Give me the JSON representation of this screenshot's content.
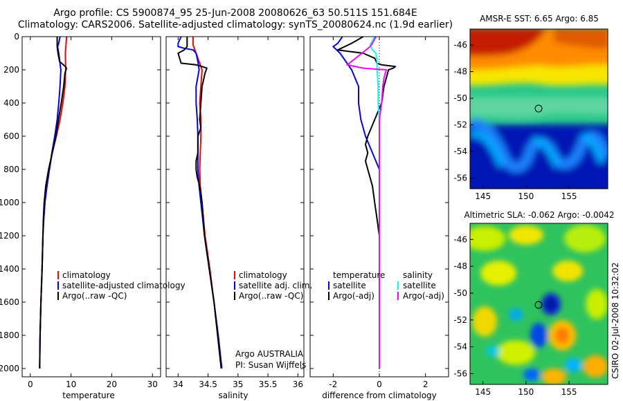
{
  "titles": {
    "line1": "Argo profile: CS 5900874_95 25-Jun-2008 20080626_63 50.511S 151.684E",
    "line2": "Climatology: CARS2006. Satellite-adjusted climatology: synTS_20080624.nc (1.9d earlier)"
  },
  "credit": "CSIRO 02-Jul-2008 10:32:02",
  "colors": {
    "red": "#ff0000",
    "blue": "#0000ff",
    "black": "#000000",
    "cyan": "#00ffff",
    "magenta": "#ff00ff"
  },
  "chart_data": [
    {
      "type": "line",
      "name": "temperature-panel",
      "xlabel": "temperature",
      "xlim": [
        -2,
        32
      ],
      "ylim": [
        0,
        2050
      ],
      "yreverse": true,
      "xticks": [
        "0",
        "10",
        "20",
        "30"
      ],
      "xtickvals": [
        0,
        10,
        20,
        30
      ],
      "yticks": [
        "0",
        "200",
        "400",
        "600",
        "800",
        "1000",
        "1200",
        "1400",
        "1600",
        "1800",
        "2000"
      ],
      "legend": [
        "climatology",
        "satellite-adjusted climatology",
        "Argo(..raw -QC)"
      ],
      "series": [
        {
          "name": "climatology",
          "color": "red",
          "points": [
            [
              8.9,
              0
            ],
            [
              8.8,
              40
            ],
            [
              8.6,
              100
            ],
            [
              8.7,
              200
            ],
            [
              8.5,
              300
            ],
            [
              8.0,
              400
            ],
            [
              7.3,
              500
            ],
            [
              6.4,
              600
            ],
            [
              5.4,
              700
            ],
            [
              4.7,
              800
            ],
            [
              4.0,
              900
            ],
            [
              3.6,
              1000
            ],
            [
              3.3,
              1100
            ],
            [
              3.1,
              1200
            ],
            [
              2.9,
              1400
            ],
            [
              2.6,
              1600
            ],
            [
              2.4,
              1800
            ],
            [
              2.3,
              2000
            ]
          ]
        },
        {
          "name": "satellite-adjusted climatology",
          "color": "blue",
          "points": [
            [
              7.3,
              0
            ],
            [
              7.0,
              40
            ],
            [
              6.7,
              60
            ],
            [
              7.0,
              100
            ],
            [
              7.5,
              200
            ],
            [
              7.3,
              300
            ],
            [
              7.0,
              400
            ],
            [
              6.6,
              500
            ],
            [
              6.0,
              600
            ],
            [
              5.3,
              700
            ],
            [
              4.7,
              800
            ],
            [
              4.1,
              900
            ],
            [
              3.6,
              1000
            ],
            [
              3.3,
              1100
            ],
            [
              3.1,
              1200
            ],
            [
              2.9,
              1400
            ],
            [
              2.6,
              1600
            ],
            [
              2.4,
              1800
            ],
            [
              2.3,
              2000
            ]
          ]
        },
        {
          "name": "Argo(..raw -QC)",
          "color": "black",
          "points": [
            [
              6.6,
              0
            ],
            [
              6.6,
              60
            ],
            [
              6.8,
              100
            ],
            [
              7.2,
              150
            ],
            [
              8.6,
              180
            ],
            [
              8.9,
              190
            ],
            [
              8.5,
              220
            ],
            [
              8.2,
              300
            ],
            [
              7.6,
              400
            ],
            [
              6.9,
              500
            ],
            [
              6.3,
              600
            ],
            [
              5.4,
              700
            ],
            [
              4.5,
              800
            ],
            [
              3.8,
              900
            ],
            [
              3.4,
              1000
            ],
            [
              3.2,
              1100
            ],
            [
              3.1,
              1200
            ],
            [
              2.9,
              1400
            ],
            [
              2.6,
              1600
            ],
            [
              2.4,
              1800
            ],
            [
              2.3,
              2000
            ]
          ]
        }
      ]
    },
    {
      "type": "line",
      "name": "salinity-panel",
      "xlabel": "salinity",
      "xlim": [
        33.8,
        36.1
      ],
      "ylim": [
        0,
        2050
      ],
      "yreverse": true,
      "xticks": [
        "34",
        "34.5",
        "35",
        "35.5",
        "36"
      ],
      "xtickvals": [
        34,
        34.5,
        35,
        35.5,
        36
      ],
      "legend": [
        "climatology",
        "satellite adj. clim.",
        "Argo(..raw -QC)"
      ],
      "annotation": [
        "Argo AUSTRALIA",
        "PI: Susan Wijffels"
      ],
      "series": [
        {
          "name": "climatology",
          "color": "red",
          "points": [
            [
              34.25,
              0
            ],
            [
              34.25,
              50
            ],
            [
              34.3,
              100
            ],
            [
              34.35,
              150
            ],
            [
              34.4,
              200
            ],
            [
              34.38,
              300
            ],
            [
              34.36,
              400
            ],
            [
              34.38,
              500
            ],
            [
              34.38,
              600
            ],
            [
              34.37,
              700
            ],
            [
              34.36,
              800
            ],
            [
              34.37,
              900
            ],
            [
              34.4,
              1000
            ],
            [
              34.45,
              1200
            ],
            [
              34.53,
              1400
            ],
            [
              34.6,
              1600
            ],
            [
              34.66,
              1800
            ],
            [
              34.72,
              2000
            ]
          ]
        },
        {
          "name": "satellite adj. clim.",
          "color": "blue",
          "points": [
            [
              34.05,
              0
            ],
            [
              34.0,
              40
            ],
            [
              34.0,
              60
            ],
            [
              34.1,
              70
            ],
            [
              34.25,
              80
            ],
            [
              34.3,
              100
            ],
            [
              34.33,
              150
            ],
            [
              34.35,
              200
            ],
            [
              34.3,
              300
            ],
            [
              34.3,
              400
            ],
            [
              34.32,
              500
            ],
            [
              34.33,
              600
            ],
            [
              34.33,
              700
            ],
            [
              34.33,
              800
            ],
            [
              34.35,
              900
            ],
            [
              34.38,
              1000
            ],
            [
              34.44,
              1200
            ],
            [
              34.52,
              1400
            ],
            [
              34.6,
              1600
            ],
            [
              34.67,
              1800
            ],
            [
              34.73,
              2000
            ]
          ]
        },
        {
          "name": "Argo(..raw -QC)",
          "color": "black",
          "points": [
            [
              34.15,
              0
            ],
            [
              34.15,
              60
            ],
            [
              34.1,
              80
            ],
            [
              34.0,
              100
            ],
            [
              34.05,
              160
            ],
            [
              34.3,
              170
            ],
            [
              34.4,
              180
            ],
            [
              34.48,
              190
            ],
            [
              34.45,
              220
            ],
            [
              34.4,
              300
            ],
            [
              34.38,
              400
            ],
            [
              34.36,
              500
            ],
            [
              34.38,
              550
            ],
            [
              34.33,
              600
            ],
            [
              34.33,
              700
            ],
            [
              34.3,
              750
            ],
            [
              34.3,
              800
            ],
            [
              34.32,
              850
            ],
            [
              34.36,
              900
            ],
            [
              34.4,
              1000
            ],
            [
              34.44,
              1200
            ],
            [
              34.52,
              1400
            ],
            [
              34.6,
              1600
            ],
            [
              34.66,
              1800
            ],
            [
              34.72,
              2000
            ]
          ]
        }
      ]
    },
    {
      "type": "line",
      "name": "difference-panel",
      "xlabel": "difference from climatology",
      "xlim": [
        -3,
        3
      ],
      "ylim": [
        0,
        2050
      ],
      "yreverse": true,
      "xticks": [
        "-2",
        "0",
        "2"
      ],
      "xtickvals": [
        -2,
        0,
        2
      ],
      "legend_left_title": "temperature",
      "legend_right_title": "salinity",
      "legend_left": [
        "satellite",
        "Argo(-adj)"
      ],
      "legend_right": [
        "satellite",
        "Argo(-adj)"
      ],
      "zero_line": 0,
      "series": [
        {
          "name": "temperature satellite",
          "color": "blue",
          "points": [
            [
              -1.6,
              0
            ],
            [
              -1.8,
              40
            ],
            [
              -2.0,
              60
            ],
            [
              -1.7,
              100
            ],
            [
              -1.2,
              200
            ],
            [
              -0.9,
              300
            ],
            [
              -0.9,
              400
            ],
            [
              -0.8,
              500
            ],
            [
              -0.6,
              600
            ],
            [
              -0.3,
              700
            ],
            [
              0,
              800
            ],
            [
              0,
              900
            ],
            [
              0,
              1000
            ],
            [
              0,
              1200
            ],
            [
              0,
              1400
            ],
            [
              0,
              1600
            ],
            [
              0,
              1800
            ],
            [
              0,
              2000
            ]
          ]
        },
        {
          "name": "temperature Argo(-adj)",
          "color": "black",
          "points": [
            [
              -0.7,
              0
            ],
            [
              -1.2,
              40
            ],
            [
              -1.8,
              80
            ],
            [
              -0.7,
              100
            ],
            [
              -0.2,
              130
            ],
            [
              -0.1,
              160
            ],
            [
              0.1,
              170
            ],
            [
              0.7,
              180
            ],
            [
              0.6,
              190
            ],
            [
              0.4,
              200
            ],
            [
              0.2,
              300
            ],
            [
              0.1,
              400
            ],
            [
              -0.2,
              500
            ],
            [
              -0.5,
              600
            ],
            [
              -0.6,
              650
            ],
            [
              -0.5,
              700
            ],
            [
              -0.6,
              750
            ],
            [
              -0.5,
              800
            ],
            [
              -0.3,
              900
            ],
            [
              -0.2,
              1000
            ],
            [
              -0.1,
              1100
            ],
            [
              0,
              1200
            ],
            [
              0,
              1400
            ],
            [
              0,
              1600
            ],
            [
              0,
              1800
            ],
            [
              0,
              2000
            ]
          ]
        },
        {
          "name": "salinity satellite",
          "color": "cyan",
          "points": [
            [
              -0.2,
              0
            ],
            [
              -0.4,
              50
            ],
            [
              -0.3,
              80
            ],
            [
              -0.15,
              100
            ],
            [
              -0.1,
              150
            ],
            [
              -0.1,
              200
            ],
            [
              -0.05,
              300
            ],
            [
              -0.05,
              400
            ],
            [
              0,
              500
            ],
            [
              0,
              600
            ],
            [
              0,
              700
            ],
            [
              0,
              800
            ],
            [
              0,
              1000
            ],
            [
              0,
              1200
            ],
            [
              0,
              1400
            ],
            [
              0,
              1600
            ],
            [
              0,
              1800
            ],
            [
              0,
              2000
            ]
          ]
        },
        {
          "name": "salinity Argo(-adj)",
          "color": "magenta",
          "points": [
            [
              -0.15,
              0
            ],
            [
              -0.3,
              40
            ],
            [
              -0.4,
              60
            ],
            [
              -1.3,
              160
            ],
            [
              -1.4,
              170
            ],
            [
              -0.7,
              190
            ],
            [
              0.3,
              200
            ],
            [
              0.2,
              250
            ],
            [
              0.15,
              300
            ],
            [
              0.1,
              400
            ],
            [
              0,
              500
            ],
            [
              0,
              600
            ],
            [
              0,
              700
            ],
            [
              0,
              800
            ],
            [
              0,
              1000
            ],
            [
              0,
              1200
            ],
            [
              0,
              1400
            ],
            [
              0,
              1600
            ],
            [
              0,
              1800
            ],
            [
              0,
              2000
            ]
          ]
        }
      ]
    },
    {
      "type": "heatmap",
      "name": "sst-map",
      "title": "AMSR-E SST: 6.65 Argo: 6.85",
      "xticks": [
        "145",
        "150",
        "155"
      ],
      "xtickvals": [
        145,
        150,
        155
      ],
      "yticks": [
        "-46",
        "-48",
        "-50",
        "-52",
        "-54",
        "-56"
      ],
      "ytickvals": [
        -46,
        -48,
        -50,
        -52,
        -54,
        -56
      ],
      "xlim": [
        143.5,
        159.5
      ],
      "ylim": [
        -56.8,
        -44.8
      ],
      "argo_position": [
        151.684,
        -50.511
      ]
    },
    {
      "type": "heatmap",
      "name": "sla-map",
      "title": "Altimetric SLA: -0.062 Argo: -0.0042",
      "xticks": [
        "145",
        "150",
        "155"
      ],
      "xtickvals": [
        145,
        150,
        155
      ],
      "yticks": [
        "-46",
        "-48",
        "-50",
        "-52",
        "-54",
        "-56"
      ],
      "ytickvals": [
        -46,
        -48,
        -50,
        -52,
        -54,
        -56
      ],
      "xlim": [
        143.5,
        159.5
      ],
      "ylim": [
        -56.8,
        -44.8
      ],
      "argo_position": [
        151.684,
        -50.511
      ]
    }
  ]
}
